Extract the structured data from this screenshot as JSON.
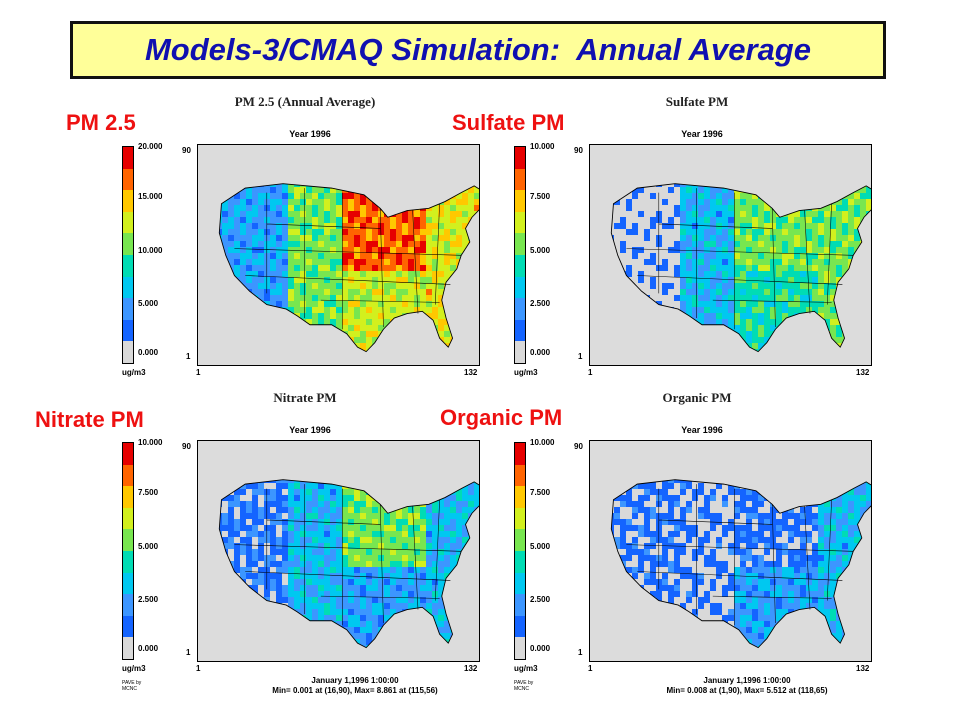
{
  "slide_title": "Models-3/CMAQ Simulation:  Annual Average",
  "labels": {
    "pm25": "PM 2.5",
    "sulfate": "Sulfate PM",
    "nitrate": "Nitrate PM",
    "organic": "Organic PM"
  },
  "colors": {
    "title_bg": "#ffff99",
    "title_text": "#1010b0",
    "label_red": "#ee1111",
    "map_bg": "#dcdcdc",
    "scale": [
      "#d9d9d9",
      "#1464ff",
      "#3c96ff",
      "#00c8f0",
      "#00dcb4",
      "#78e650",
      "#d2f01e",
      "#ffc800",
      "#ff6400",
      "#e60000"
    ]
  },
  "panels": [
    {
      "title": "PM 2.5 (Annual Average)",
      "year": "Year 1996",
      "unit": "ug/m3",
      "ticks": [
        "20.000",
        "15.000",
        "10.000",
        "5.000",
        "0.000"
      ],
      "axis": {
        "y_top": "90",
        "y_bottom": "1",
        "x_left": "1",
        "x_right": "132"
      },
      "footer": "",
      "min_max": "",
      "credit": "",
      "intensity": {
        "west": 0.25,
        "plains": 0.55,
        "midwest": 0.9,
        "south": 0.65,
        "east": 0.7
      }
    },
    {
      "title": "Sulfate PM",
      "year": "Year 1996",
      "unit": "ug/m3",
      "ticks": [
        "10.000",
        "7.500",
        "5.000",
        "2.500",
        "0.000"
      ],
      "axis": {
        "y_top": "90",
        "y_bottom": "1",
        "x_left": "1",
        "x_right": "132"
      },
      "footer": "",
      "min_max": "",
      "credit": "",
      "intensity": {
        "west": 0.02,
        "plains": 0.3,
        "midwest": 0.55,
        "south": 0.45,
        "east": 0.55
      }
    },
    {
      "title": "Nitrate PM",
      "year": "Year 1996",
      "unit": "ug/m3",
      "ticks": [
        "10.000",
        "7.500",
        "5.000",
        "2.500",
        "0.000"
      ],
      "axis": {
        "y_top": "90",
        "y_bottom": "1",
        "x_left": "1",
        "x_right": "132"
      },
      "footer": "January 1,1996 1:00:00",
      "min_max": "Min=   0.001 at (16,90), Max=   8.861 at (115,56)",
      "credit": "PAVE by MCNC",
      "intensity": {
        "west": 0.12,
        "plains": 0.3,
        "midwest": 0.55,
        "south": 0.25,
        "east": 0.3
      }
    },
    {
      "title": "Organic PM",
      "year": "Year 1996",
      "unit": "ug/m3",
      "ticks": [
        "10.000",
        "7.500",
        "5.000",
        "2.500",
        "0.000"
      ],
      "axis": {
        "y_top": "90",
        "y_bottom": "1",
        "x_left": "1",
        "x_right": "132"
      },
      "footer": "January 1,1996 1:00:00",
      "min_max": "Min=   0.008 at (1,90), Max=   5.512 at (118,65)",
      "credit": "PAVE by MCNC",
      "intensity": {
        "west": 0.08,
        "plains": 0.05,
        "midwest": 0.1,
        "south": 0.25,
        "east": 0.3
      }
    }
  ]
}
